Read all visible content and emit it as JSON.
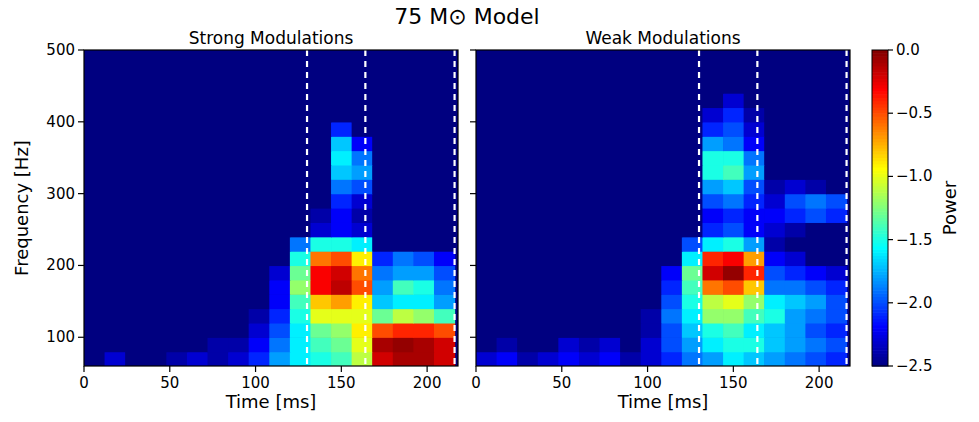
{
  "chart_data": {
    "type": "heatmap",
    "title": "75 M⊙ Model",
    "x_label": "Time [ms]",
    "y_label": "Frequency [Hz]",
    "xlim": [
      0,
      218
    ],
    "ylim": [
      60,
      500
    ],
    "xticks": [
      0,
      50,
      100,
      150,
      200
    ],
    "yticks": [
      100,
      200,
      300,
      400,
      500
    ],
    "x_edges": [
      0,
      12,
      24,
      36,
      48,
      60,
      72,
      84,
      96,
      108,
      120,
      132,
      144,
      156,
      168,
      180,
      192,
      204,
      216
    ],
    "y_edges": [
      60,
      80,
      100,
      120,
      140,
      160,
      180,
      200,
      220,
      240,
      260,
      280,
      300,
      320,
      340,
      360,
      380,
      400,
      420,
      440,
      460,
      480,
      500
    ],
    "vlines": [
      130,
      164,
      216
    ],
    "colorbar": {
      "label": "Power",
      "range": [
        -2.5,
        0
      ],
      "ticks": [
        {
          "value": 0,
          "label": "0.0"
        },
        {
          "value": -0.5,
          "label": "−0.5"
        },
        {
          "value": -1,
          "label": "−1.0"
        },
        {
          "value": -1.5,
          "label": "−1.5"
        },
        {
          "value": -2,
          "label": "−2.0"
        },
        {
          "value": -2.5,
          "label": "−2.5"
        }
      ]
    },
    "panels": [
      {
        "subtitle": "Strong Modulations",
        "tick_labels": true,
        "z": [
          [
            -2.5,
            -2.3,
            -2.5,
            -2.5,
            -2.4,
            -2.3,
            -2.4,
            -2.3,
            -2.1,
            -1.8,
            -1.6,
            -1.5,
            -1.4,
            -1.1,
            -0.2,
            -0.1,
            -0.1,
            -0.2
          ],
          [
            -2.5,
            -2.5,
            -2.5,
            -2.5,
            -2.5,
            -2.5,
            -2.4,
            -2.4,
            -2.2,
            -1.9,
            -1.6,
            -1.4,
            -1.3,
            -1.0,
            -0.1,
            -0.05,
            -0.1,
            -0.2
          ],
          [
            -2.5,
            -2.5,
            -2.5,
            -2.5,
            -2.5,
            -2.5,
            -2.5,
            -2.5,
            -2.3,
            -2.0,
            -1.6,
            -1.3,
            -1.2,
            -0.9,
            -0.5,
            -0.4,
            -0.4,
            -0.5
          ],
          [
            -2.5,
            -2.5,
            -2.5,
            -2.5,
            -2.5,
            -2.5,
            -2.5,
            -2.5,
            -2.4,
            -2.1,
            -1.5,
            -1.0,
            -1.0,
            -1.0,
            -1.3,
            -1.1,
            -1.2,
            -1.4
          ],
          [
            -2.5,
            -2.5,
            -2.5,
            -2.5,
            -2.5,
            -2.5,
            -2.5,
            -2.5,
            -2.5,
            -2.2,
            -1.4,
            -0.8,
            -0.7,
            -0.9,
            -1.7,
            -1.6,
            -1.6,
            -1.8
          ],
          [
            -2.5,
            -2.5,
            -2.5,
            -2.5,
            -2.5,
            -2.5,
            -2.5,
            -2.5,
            -2.5,
            -2.2,
            -1.2,
            -0.3,
            -0.15,
            -0.5,
            -1.8,
            -1.4,
            -1.5,
            -1.9
          ],
          [
            -2.5,
            -2.5,
            -2.5,
            -2.5,
            -2.5,
            -2.5,
            -2.5,
            -2.5,
            -2.5,
            -2.3,
            -1.3,
            -0.3,
            -0.2,
            -0.6,
            -1.9,
            -1.8,
            -1.8,
            -2.0
          ],
          [
            -2.5,
            -2.5,
            -2.5,
            -2.5,
            -2.5,
            -2.5,
            -2.5,
            -2.5,
            -2.5,
            -2.5,
            -1.5,
            -0.6,
            -0.5,
            -0.9,
            -2.1,
            -1.9,
            -2.0,
            -2.2
          ],
          [
            -2.5,
            -2.5,
            -2.5,
            -2.5,
            -2.5,
            -2.5,
            -2.5,
            -2.5,
            -2.5,
            -2.5,
            -1.9,
            -1.5,
            -1.5,
            -1.6,
            -2.5,
            -2.5,
            -2.5,
            -2.5
          ],
          [
            -2.5,
            -2.5,
            -2.5,
            -2.5,
            -2.5,
            -2.5,
            -2.5,
            -2.5,
            -2.5,
            -2.5,
            -2.5,
            -2.3,
            -2.2,
            -2.3,
            -2.5,
            -2.5,
            -2.5,
            -2.5
          ],
          [
            -2.5,
            -2.5,
            -2.5,
            -2.5,
            -2.5,
            -2.5,
            -2.5,
            -2.5,
            -2.5,
            -2.5,
            -2.5,
            -2.4,
            -2.2,
            -2.4,
            -2.5,
            -2.5,
            -2.5,
            -2.5
          ],
          [
            -2.5,
            -2.5,
            -2.5,
            -2.5,
            -2.5,
            -2.5,
            -2.5,
            -2.5,
            -2.5,
            -2.5,
            -2.5,
            -2.5,
            -2.1,
            -2.3,
            -2.5,
            -2.5,
            -2.5,
            -2.5
          ],
          [
            -2.5,
            -2.5,
            -2.5,
            -2.5,
            -2.5,
            -2.5,
            -2.5,
            -2.5,
            -2.5,
            -2.5,
            -2.5,
            -2.5,
            -1.9,
            -2.0,
            -2.5,
            -2.5,
            -2.5,
            -2.5
          ],
          [
            -2.5,
            -2.5,
            -2.5,
            -2.5,
            -2.5,
            -2.5,
            -2.5,
            -2.5,
            -2.5,
            -2.5,
            -2.5,
            -2.5,
            -1.7,
            -1.8,
            -2.5,
            -2.5,
            -2.5,
            -2.5
          ],
          [
            -2.5,
            -2.5,
            -2.5,
            -2.5,
            -2.5,
            -2.5,
            -2.5,
            -2.5,
            -2.5,
            -2.5,
            -2.5,
            -2.5,
            -1.6,
            -1.9,
            -2.5,
            -2.5,
            -2.5,
            -2.5
          ],
          [
            -2.5,
            -2.5,
            -2.5,
            -2.5,
            -2.5,
            -2.5,
            -2.5,
            -2.5,
            -2.5,
            -2.5,
            -2.5,
            -2.5,
            -1.7,
            -2.2,
            -2.5,
            -2.5,
            -2.5,
            -2.5
          ],
          [
            -2.5,
            -2.5,
            -2.5,
            -2.5,
            -2.5,
            -2.5,
            -2.5,
            -2.5,
            -2.5,
            -2.5,
            -2.5,
            -2.5,
            -2.1,
            -2.5,
            -2.5,
            -2.5,
            -2.5,
            -2.5
          ],
          [
            -2.5,
            -2.5,
            -2.5,
            -2.5,
            -2.5,
            -2.5,
            -2.5,
            -2.5,
            -2.5,
            -2.5,
            -2.5,
            -2.5,
            -2.5,
            -2.5,
            -2.5,
            -2.5,
            -2.5,
            -2.5
          ],
          [
            -2.5,
            -2.5,
            -2.5,
            -2.5,
            -2.5,
            -2.5,
            -2.5,
            -2.5,
            -2.5,
            -2.5,
            -2.5,
            -2.5,
            -2.5,
            -2.5,
            -2.5,
            -2.5,
            -2.5,
            -2.5
          ],
          [
            -2.5,
            -2.5,
            -2.5,
            -2.5,
            -2.5,
            -2.5,
            -2.5,
            -2.5,
            -2.5,
            -2.5,
            -2.5,
            -2.5,
            -2.5,
            -2.5,
            -2.5,
            -2.5,
            -2.5,
            -2.5
          ],
          [
            -2.5,
            -2.5,
            -2.5,
            -2.5,
            -2.5,
            -2.5,
            -2.5,
            -2.5,
            -2.5,
            -2.5,
            -2.5,
            -2.5,
            -2.5,
            -2.5,
            -2.5,
            -2.5,
            -2.5,
            -2.5
          ],
          [
            -2.5,
            -2.5,
            -2.5,
            -2.5,
            -2.5,
            -2.5,
            -2.5,
            -2.5,
            -2.5,
            -2.5,
            -2.5,
            -2.5,
            -2.5,
            -2.5,
            -2.5,
            -2.5,
            -2.5,
            -2.5
          ]
        ]
      },
      {
        "subtitle": "Weak Modulations",
        "tick_labels": "x",
        "z": [
          [
            -2.3,
            -2.2,
            -2.4,
            -2.3,
            -2.2,
            -2.3,
            -2.2,
            -2.4,
            -2.3,
            -2.1,
            -1.9,
            -1.8,
            -1.6,
            -1.7,
            -1.8,
            -1.9,
            -2.0,
            -2.1
          ],
          [
            -2.5,
            -2.4,
            -2.5,
            -2.5,
            -2.3,
            -2.4,
            -2.3,
            -2.5,
            -2.3,
            -2.0,
            -1.8,
            -1.6,
            -1.5,
            -1.5,
            -1.7,
            -1.8,
            -1.9,
            -2.0
          ],
          [
            -2.5,
            -2.5,
            -2.5,
            -2.5,
            -2.5,
            -2.5,
            -2.5,
            -2.5,
            -2.4,
            -2.0,
            -1.7,
            -1.5,
            -1.4,
            -1.6,
            -1.7,
            -1.8,
            -2.0,
            -2.1
          ],
          [
            -2.5,
            -2.5,
            -2.5,
            -2.5,
            -2.5,
            -2.5,
            -2.5,
            -2.5,
            -2.4,
            -1.9,
            -1.6,
            -1.2,
            -1.2,
            -1.4,
            -1.5,
            -1.8,
            -1.9,
            -2.0
          ],
          [
            -2.5,
            -2.5,
            -2.5,
            -2.5,
            -2.5,
            -2.5,
            -2.5,
            -2.5,
            -2.5,
            -2.0,
            -1.5,
            -1.1,
            -1.0,
            -1.2,
            -1.6,
            -1.7,
            -1.8,
            -2.0
          ],
          [
            -2.5,
            -2.5,
            -2.5,
            -2.5,
            -2.5,
            -2.5,
            -2.5,
            -2.5,
            -2.5,
            -2.1,
            -1.4,
            -0.6,
            -0.5,
            -0.8,
            -1.9,
            -1.9,
            -2.0,
            -2.1
          ],
          [
            -2.5,
            -2.5,
            -2.5,
            -2.5,
            -2.5,
            -2.5,
            -2.5,
            -2.5,
            -2.5,
            -2.2,
            -1.3,
            -0.2,
            -0.05,
            -0.4,
            -2.0,
            -2.1,
            -2.2,
            -2.3
          ],
          [
            -2.5,
            -2.5,
            -2.5,
            -2.5,
            -2.5,
            -2.5,
            -2.5,
            -2.5,
            -2.5,
            -2.5,
            -1.6,
            -0.4,
            -0.3,
            -0.7,
            -2.2,
            -2.3,
            -2.5,
            -2.5
          ],
          [
            -2.5,
            -2.5,
            -2.5,
            -2.5,
            -2.5,
            -2.5,
            -2.5,
            -2.5,
            -2.5,
            -2.5,
            -2.0,
            -1.6,
            -1.5,
            -1.8,
            -2.4,
            -2.5,
            -2.5,
            -2.5
          ],
          [
            -2.5,
            -2.5,
            -2.5,
            -2.5,
            -2.5,
            -2.5,
            -2.5,
            -2.5,
            -2.5,
            -2.5,
            -2.5,
            -2.1,
            -2.0,
            -2.2,
            -2.3,
            -2.4,
            -2.5,
            -2.5
          ],
          [
            -2.5,
            -2.5,
            -2.5,
            -2.5,
            -2.5,
            -2.5,
            -2.5,
            -2.5,
            -2.5,
            -2.5,
            -2.5,
            -2.2,
            -2.1,
            -2.2,
            -2.2,
            -2.1,
            -2.0,
            -2.1
          ],
          [
            -2.5,
            -2.5,
            -2.5,
            -2.5,
            -2.5,
            -2.5,
            -2.5,
            -2.5,
            -2.5,
            -2.5,
            -2.5,
            -2.0,
            -1.9,
            -2.1,
            -2.3,
            -2.0,
            -1.9,
            -2.0
          ],
          [
            -2.5,
            -2.5,
            -2.5,
            -2.5,
            -2.5,
            -2.5,
            -2.5,
            -2.5,
            -2.5,
            -2.5,
            -2.5,
            -1.8,
            -1.7,
            -2.0,
            -2.4,
            -2.3,
            -2.4,
            -2.5
          ],
          [
            -2.5,
            -2.5,
            -2.5,
            -2.5,
            -2.5,
            -2.5,
            -2.5,
            -2.5,
            -2.5,
            -2.5,
            -2.5,
            -1.5,
            -1.4,
            -1.8,
            -2.5,
            -2.5,
            -2.5,
            -2.5
          ],
          [
            -2.5,
            -2.5,
            -2.5,
            -2.5,
            -2.5,
            -2.5,
            -2.5,
            -2.5,
            -2.5,
            -2.5,
            -2.5,
            -1.5,
            -1.5,
            -1.9,
            -2.5,
            -2.5,
            -2.5,
            -2.5
          ],
          [
            -2.5,
            -2.5,
            -2.5,
            -2.5,
            -2.5,
            -2.5,
            -2.5,
            -2.5,
            -2.5,
            -2.5,
            -2.5,
            -1.8,
            -1.9,
            -2.2,
            -2.5,
            -2.5,
            -2.5,
            -2.5
          ],
          [
            -2.5,
            -2.5,
            -2.5,
            -2.5,
            -2.5,
            -2.5,
            -2.5,
            -2.5,
            -2.5,
            -2.5,
            -2.5,
            -2.1,
            -2.0,
            -2.3,
            -2.5,
            -2.5,
            -2.5,
            -2.5
          ],
          [
            -2.5,
            -2.5,
            -2.5,
            -2.5,
            -2.5,
            -2.5,
            -2.5,
            -2.5,
            -2.5,
            -2.5,
            -2.5,
            -2.3,
            -2.1,
            -2.4,
            -2.5,
            -2.5,
            -2.5,
            -2.5
          ],
          [
            -2.5,
            -2.5,
            -2.5,
            -2.5,
            -2.5,
            -2.5,
            -2.5,
            -2.5,
            -2.5,
            -2.5,
            -2.5,
            -2.5,
            -2.3,
            -2.5,
            -2.5,
            -2.5,
            -2.5,
            -2.5
          ],
          [
            -2.5,
            -2.5,
            -2.5,
            -2.5,
            -2.5,
            -2.5,
            -2.5,
            -2.5,
            -2.5,
            -2.5,
            -2.5,
            -2.5,
            -2.5,
            -2.5,
            -2.5,
            -2.5,
            -2.5,
            -2.5
          ],
          [
            -2.5,
            -2.5,
            -2.5,
            -2.5,
            -2.5,
            -2.5,
            -2.5,
            -2.5,
            -2.5,
            -2.5,
            -2.5,
            -2.5,
            -2.5,
            -2.5,
            -2.5,
            -2.5,
            -2.5,
            -2.5
          ],
          [
            -2.5,
            -2.5,
            -2.5,
            -2.5,
            -2.5,
            -2.5,
            -2.5,
            -2.5,
            -2.5,
            -2.5,
            -2.5,
            -2.5,
            -2.5,
            -2.5,
            -2.5,
            -2.5,
            -2.5,
            -2.5
          ]
        ]
      }
    ]
  }
}
